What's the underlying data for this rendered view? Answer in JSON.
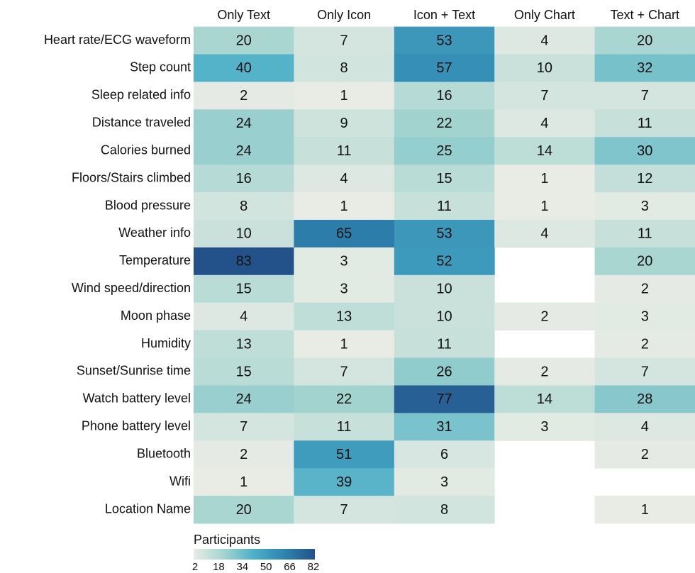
{
  "chart_data": {
    "type": "heatmap",
    "columns": [
      "Only Text",
      "Only Icon",
      "Icon + Text",
      "Only Chart",
      "Text + Chart"
    ],
    "rows": [
      "Heart rate/ECG waveform",
      "Step count",
      "Sleep related info",
      "Distance traveled",
      "Calories burned",
      "Floors/Stairs climbed",
      "Blood pressure",
      "Weather info",
      "Temperature",
      "Wind speed/direction",
      "Moon phase",
      "Humidity",
      "Sunset/Sunrise time",
      "Watch battery level",
      "Phone battery level",
      "Bluetooth",
      "Wifi",
      "Location Name"
    ],
    "values": [
      [
        20,
        7,
        53,
        4,
        20
      ],
      [
        40,
        8,
        57,
        10,
        32
      ],
      [
        2,
        1,
        16,
        7,
        7
      ],
      [
        24,
        9,
        22,
        4,
        11
      ],
      [
        24,
        11,
        25,
        14,
        30
      ],
      [
        16,
        4,
        15,
        1,
        12
      ],
      [
        8,
        1,
        11,
        1,
        3
      ],
      [
        10,
        65,
        53,
        4,
        11
      ],
      [
        83,
        3,
        52,
        null,
        20
      ],
      [
        15,
        3,
        10,
        null,
        2
      ],
      [
        4,
        13,
        10,
        2,
        3
      ],
      [
        13,
        1,
        11,
        null,
        2
      ],
      [
        15,
        7,
        26,
        2,
        7
      ],
      [
        24,
        22,
        77,
        14,
        28
      ],
      [
        7,
        11,
        31,
        3,
        4
      ],
      [
        2,
        51,
        6,
        null,
        2
      ],
      [
        1,
        39,
        3,
        null,
        null
      ],
      [
        20,
        7,
        8,
        null,
        1
      ]
    ],
    "colorscale": [
      "#e8ece5",
      "#a4d4cf",
      "#4cafc8",
      "#2e83b0",
      "#23528a"
    ],
    "legend_title": "Participants",
    "legend_ticks": [
      2,
      18,
      34,
      50,
      66,
      82
    ]
  }
}
